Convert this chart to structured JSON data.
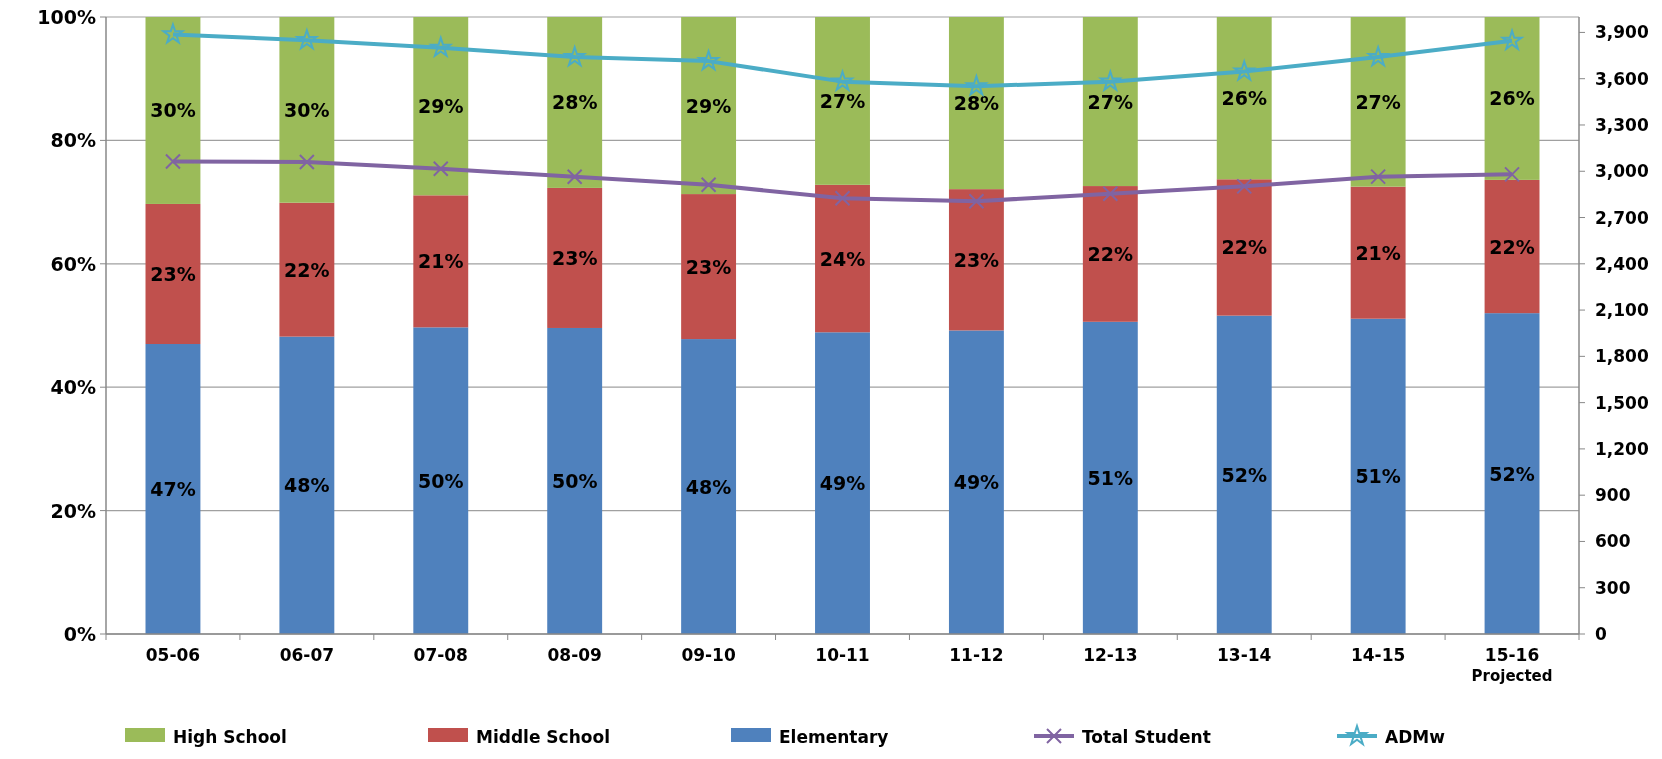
{
  "chart_data": {
    "type": "bar",
    "stacked": true,
    "categories": [
      "05-06",
      "06-07",
      "07-08",
      "08-09",
      "09-10",
      "10-11",
      "11-12",
      "12-13",
      "13-14",
      "14-15",
      "15-16\nProjected"
    ],
    "ylim": [
      0,
      100
    ],
    "yticks": [
      {
        "value": 0,
        "label": "0%"
      },
      {
        "value": 20,
        "label": "20%"
      },
      {
        "value": 40,
        "label": "40%"
      },
      {
        "value": 60,
        "label": "60%"
      },
      {
        "value": 80,
        "label": "80%"
      },
      {
        "value": 100,
        "label": "100%"
      }
    ],
    "y2lim": [
      0,
      4000
    ],
    "y2ticks": [
      {
        "value": 0,
        "label": "0"
      },
      {
        "value": 300,
        "label": "300"
      },
      {
        "value": 600,
        "label": "600"
      },
      {
        "value": 900,
        "label": "900"
      },
      {
        "value": 1200,
        "label": "1,200"
      },
      {
        "value": 1500,
        "label": "1,500"
      },
      {
        "value": 1800,
        "label": "1,800"
      },
      {
        "value": 2100,
        "label": "2,100"
      },
      {
        "value": 2400,
        "label": "2,400"
      },
      {
        "value": 2700,
        "label": "2,700"
      },
      {
        "value": 3000,
        "label": "3,000"
      },
      {
        "value": 3300,
        "label": "3,300"
      },
      {
        "value": 3600,
        "label": "3,600"
      },
      {
        "value": 3900,
        "label": "3,900"
      }
    ],
    "grid": "y",
    "legend": "bottom",
    "series": [
      {
        "name": "Elementary",
        "color": "#4f81bd",
        "values": [
          47.0,
          48.2,
          49.7,
          49.6,
          47.8,
          48.9,
          49.2,
          50.6,
          51.6,
          51.1,
          52.0
        ],
        "value_labels": [
          "47%",
          "48%",
          "50%",
          "50%",
          "48%",
          "49%",
          "49%",
          "51%",
          "52%",
          "51%",
          "52%"
        ]
      },
      {
        "name": "Middle School",
        "color": "#c0504d",
        "values": [
          22.7,
          21.7,
          21.4,
          22.7,
          23.5,
          23.9,
          22.9,
          22.0,
          22.1,
          21.4,
          21.6
        ],
        "value_labels": [
          "23%",
          "22%",
          "21%",
          "23%",
          "23%",
          "24%",
          "23%",
          "22%",
          "22%",
          "21%",
          "22%"
        ]
      },
      {
        "name": "High School",
        "color": "#9bbb59",
        "values": [
          30.3,
          30.1,
          28.9,
          27.7,
          28.7,
          27.2,
          27.9,
          27.4,
          26.3,
          27.5,
          26.4
        ],
        "value_labels": [
          "30%",
          "30%",
          "29%",
          "28%",
          "29%",
          "27%",
          "28%",
          "27%",
          "26%",
          "27%",
          "26%"
        ]
      },
      {
        "name": "Total Student",
        "type": "line",
        "axis": "y2",
        "marker": "cross",
        "color": "#8064a2",
        "values": [
          3063,
          3060,
          3016,
          2964,
          2912,
          2825,
          2806,
          2854,
          2902,
          2965,
          2980
        ]
      },
      {
        "name": "ADMw",
        "type": "line",
        "axis": "y2",
        "marker": "star",
        "color": "#4bacc6",
        "values": [
          3887,
          3850,
          3801,
          3740,
          3714,
          3581,
          3551,
          3581,
          3647,
          3740,
          3846
        ]
      }
    ]
  }
}
